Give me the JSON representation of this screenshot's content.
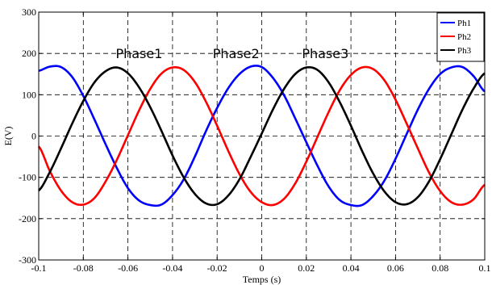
{
  "chart_data": {
    "type": "line",
    "xlabel": "Temps (s)",
    "ylabel": "E(V)",
    "xlim": [
      -0.1,
      0.1
    ],
    "ylim": [
      -300,
      300
    ],
    "xticks": [
      -0.1,
      -0.08,
      -0.06,
      -0.04,
      -0.02,
      0,
      0.02,
      0.04,
      0.06,
      0.08,
      0.1
    ],
    "xtick_labels": [
      "-0.1",
      "-0.08",
      "-0.06",
      "-0.04",
      "-0.02",
      "0",
      "0.02",
      "0.04",
      "0.06",
      "0.08",
      "0.1"
    ],
    "yticks": [
      -300,
      -200,
      -100,
      0,
      100,
      200,
      300
    ],
    "ytick_labels": [
      "-300",
      "-200",
      "-100",
      "0",
      "100",
      "200",
      "300"
    ],
    "grid": true,
    "grid_style": "dashed",
    "legend_position": "top-right",
    "annotations": [
      {
        "text": "Phase1",
        "x": -0.055,
        "y": 200
      },
      {
        "text": "Phase2",
        "x": -0.0115,
        "y": 200
      },
      {
        "text": "Phase3",
        "x": 0.0285,
        "y": 200
      }
    ],
    "series": [
      {
        "name": "Ph1",
        "color": "#0000ff",
        "x": [
          -0.1,
          -0.095,
          -0.09,
          -0.085,
          -0.08,
          -0.075,
          -0.07,
          -0.065,
          -0.06,
          -0.055,
          -0.05,
          -0.045,
          -0.04,
          -0.035,
          -0.03,
          -0.025,
          -0.02,
          -0.015,
          -0.01,
          -0.005,
          0,
          0.005,
          0.01,
          0.015,
          0.02,
          0.025,
          0.03,
          0.035,
          0.04,
          0.045,
          0.05,
          0.055,
          0.06,
          0.065,
          0.07,
          0.075,
          0.08,
          0.085,
          0.09,
          0.095,
          0.1
        ],
        "y": [
          158,
          168,
          167,
          143,
          97,
          40,
          -20,
          -77,
          -126,
          -156,
          -167,
          -166,
          -143,
          -105,
          -50,
          12,
          68,
          116,
          150,
          168,
          167,
          141,
          99,
          43,
          -15,
          -72,
          -122,
          -155,
          -167,
          -167,
          -145,
          -108,
          -55,
          5,
          64,
          114,
          150,
          166,
          167,
          145,
          108
        ]
      },
      {
        "name": "Ph2",
        "color": "#ff0000",
        "x": [
          -0.1,
          -0.095,
          -0.09,
          -0.085,
          -0.08,
          -0.075,
          -0.07,
          -0.065,
          -0.06,
          -0.055,
          -0.05,
          -0.045,
          -0.04,
          -0.035,
          -0.03,
          -0.025,
          -0.02,
          -0.015,
          -0.01,
          -0.005,
          0,
          0.005,
          0.01,
          0.015,
          0.02,
          0.025,
          0.03,
          0.035,
          0.04,
          0.045,
          0.05,
          0.055,
          0.06,
          0.065,
          0.07,
          0.075,
          0.08,
          0.085,
          0.09,
          0.095,
          0.1
        ],
        "y": [
          -25,
          -85,
          -132,
          -160,
          -166,
          -150,
          -110,
          -58,
          2,
          62,
          114,
          151,
          166,
          160,
          131,
          83,
          25,
          -36,
          -92,
          -135,
          -160,
          -167,
          -152,
          -115,
          -62,
          -2,
          58,
          111,
          148,
          166,
          162,
          135,
          88,
          30,
          -30,
          -88,
          -133,
          -160,
          -166,
          -153,
          -118
        ]
      },
      {
        "name": "Ph3",
        "color": "#000000",
        "x": [
          -0.1,
          -0.095,
          -0.09,
          -0.085,
          -0.08,
          -0.075,
          -0.07,
          -0.065,
          -0.06,
          -0.055,
          -0.05,
          -0.045,
          -0.04,
          -0.035,
          -0.03,
          -0.025,
          -0.02,
          -0.015,
          -0.01,
          -0.005,
          0,
          0.005,
          0.01,
          0.015,
          0.02,
          0.025,
          0.03,
          0.035,
          0.04,
          0.045,
          0.05,
          0.055,
          0.06,
          0.065,
          0.07,
          0.075,
          0.08,
          0.085,
          0.09,
          0.095,
          0.1
        ],
        "y": [
          -132,
          -87,
          -30,
          30,
          85,
          130,
          157,
          166,
          152,
          118,
          70,
          13,
          -47,
          -100,
          -140,
          -163,
          -165,
          -144,
          -105,
          -51,
          6,
          64,
          114,
          150,
          166,
          160,
          130,
          82,
          25,
          -36,
          -91,
          -134,
          -160,
          -165,
          -148,
          -110,
          -56,
          4,
          64,
          115,
          152
        ]
      }
    ]
  }
}
